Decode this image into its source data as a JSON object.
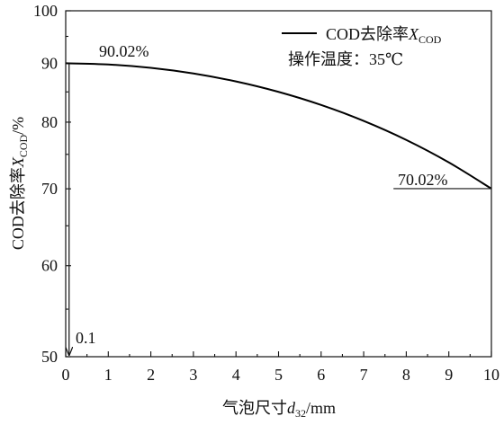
{
  "chart_data": {
    "type": "line",
    "x": [
      0,
      1,
      2,
      3,
      4,
      5,
      6,
      7,
      8,
      9,
      10
    ],
    "series": [
      {
        "values": [
          90.02,
          89.8,
          89.2,
          88.2,
          86.8,
          85.0,
          82.8,
          80.2,
          77.2,
          73.8,
          70.02
        ],
        "color": "#000000"
      }
    ],
    "xlim": [
      0,
      10
    ],
    "ylim": [
      50,
      100
    ],
    "yscale": "log",
    "xticks": [
      0,
      1,
      2,
      3,
      4,
      5,
      6,
      7,
      8,
      9,
      10
    ],
    "yticks": [
      50,
      60,
      70,
      80,
      90,
      100
    ],
    "xlabel": {
      "text": "气泡尺寸",
      "var": "d",
      "sub": "32",
      "unit": "/mm"
    },
    "ylabel": {
      "text": "COD去除率",
      "var": "X",
      "sub": "COD",
      "unit": "/%"
    },
    "legend": {
      "placement": "top-right",
      "entries": [
        {
          "text": "COD去除率",
          "var": "X",
          "sub": "COD"
        }
      ]
    },
    "annotations": {
      "start_value": "90.02%",
      "end_value": "70.02%",
      "arrow_label": "0.1",
      "condition": "操作温度：35℃"
    },
    "grid": false
  }
}
